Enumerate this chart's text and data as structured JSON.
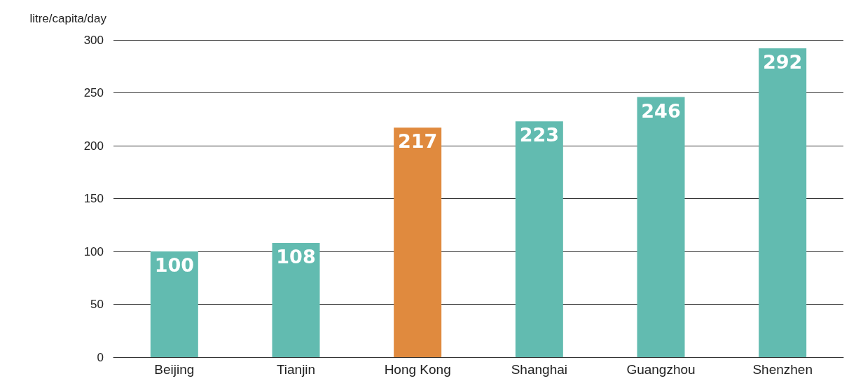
{
  "chart_data": {
    "type": "bar",
    "ylabel": "litre/capita/day",
    "categories": [
      "Beijing",
      "Tianjin",
      "Hong Kong",
      "Shanghai",
      "Guangzhou",
      "Shenzhen"
    ],
    "values": [
      100,
      108,
      217,
      223,
      246,
      292
    ],
    "colors": [
      "#62bbb0",
      "#62bbb0",
      "#e08a3e",
      "#62bbb0",
      "#62bbb0",
      "#62bbb0"
    ],
    "ylim": [
      0,
      300
    ],
    "yticks": [
      0,
      50,
      100,
      150,
      200,
      250,
      300
    ],
    "grid": "y",
    "data_labels": true
  }
}
